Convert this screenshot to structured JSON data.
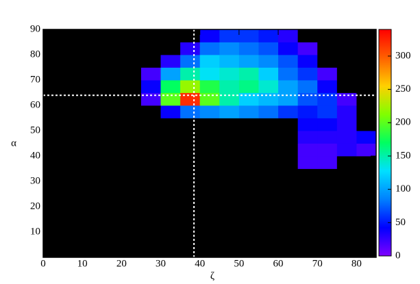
{
  "chart_data": {
    "type": "heatmap",
    "x_label": "ζ",
    "y_label": "α",
    "xlim": [
      0,
      85
    ],
    "ylim": [
      0,
      90
    ],
    "xticks": [
      0,
      10,
      20,
      30,
      40,
      50,
      60,
      70,
      80
    ],
    "yticks": [
      10,
      20,
      30,
      40,
      50,
      60,
      70,
      80,
      90
    ],
    "xbins": [
      0,
      5,
      10,
      15,
      20,
      25,
      30,
      35,
      40,
      45,
      50,
      55,
      60,
      65,
      70,
      75,
      80,
      85
    ],
    "ybins": [
      0,
      5,
      10,
      15,
      20,
      25,
      30,
      35,
      40,
      45,
      50,
      55,
      60,
      65,
      70,
      75,
      80,
      85,
      90
    ],
    "z": [
      [
        0,
        0,
        0,
        0,
        0,
        0,
        0,
        0,
        0,
        0,
        0,
        0,
        0,
        0,
        0,
        0,
        0
      ],
      [
        0,
        0,
        0,
        0,
        0,
        0,
        0,
        0,
        0,
        0,
        0,
        0,
        0,
        0,
        0,
        0,
        0
      ],
      [
        0,
        0,
        0,
        0,
        0,
        0,
        0,
        0,
        0,
        0,
        0,
        0,
        0,
        0,
        0,
        0,
        0
      ],
      [
        0,
        0,
        0,
        0,
        0,
        0,
        0,
        0,
        0,
        0,
        0,
        0,
        0,
        0,
        0,
        0,
        0
      ],
      [
        0,
        0,
        0,
        0,
        0,
        0,
        0,
        0,
        0,
        0,
        0,
        0,
        0,
        0,
        0,
        0,
        0
      ],
      [
        0,
        0,
        0,
        0,
        0,
        0,
        0,
        0,
        0,
        0,
        0,
        0,
        0,
        0,
        0,
        0,
        0
      ],
      [
        0,
        0,
        0,
        0,
        0,
        0,
        0,
        0,
        0,
        0,
        0,
        0,
        0,
        0,
        0,
        0,
        0
      ],
      [
        0,
        0,
        0,
        0,
        0,
        0,
        0,
        0,
        0,
        0,
        0,
        0,
        0,
        20,
        20,
        0,
        0
      ],
      [
        0,
        0,
        0,
        0,
        0,
        0,
        0,
        0,
        0,
        0,
        0,
        0,
        0,
        20,
        20,
        30,
        20
      ],
      [
        0,
        0,
        0,
        0,
        0,
        0,
        0,
        0,
        0,
        0,
        0,
        0,
        0,
        30,
        30,
        30,
        40
      ],
      [
        0,
        0,
        0,
        0,
        0,
        0,
        0,
        0,
        0,
        0,
        0,
        0,
        0,
        40,
        40,
        30,
        0
      ],
      [
        0,
        0,
        0,
        0,
        0,
        0,
        40,
        80,
        90,
        100,
        90,
        80,
        60,
        50,
        60,
        30,
        0
      ],
      [
        0,
        0,
        0,
        0,
        0,
        20,
        200,
        320,
        200,
        150,
        120,
        110,
        100,
        70,
        60,
        20,
        0
      ],
      [
        0,
        0,
        0,
        0,
        0,
        40,
        170,
        220,
        180,
        150,
        160,
        140,
        100,
        80,
        40,
        0,
        0
      ],
      [
        0,
        0,
        0,
        0,
        0,
        20,
        100,
        150,
        130,
        140,
        150,
        120,
        80,
        60,
        20,
        0,
        0
      ],
      [
        0,
        0,
        0,
        0,
        0,
        0,
        30,
        80,
        120,
        110,
        100,
        90,
        70,
        40,
        0,
        0,
        0
      ],
      [
        0,
        0,
        0,
        0,
        0,
        0,
        0,
        30,
        80,
        90,
        80,
        70,
        40,
        20,
        0,
        0,
        0
      ],
      [
        0,
        0,
        0,
        0,
        0,
        0,
        0,
        0,
        40,
        60,
        60,
        50,
        30,
        0,
        0,
        0,
        0
      ]
    ],
    "zlim": [
      0,
      340
    ],
    "zticks": [
      0,
      50,
      100,
      150,
      200,
      250,
      300
    ],
    "colormap": [
      "#7f00ff",
      "#0000ff",
      "#0080ff",
      "#00e0ff",
      "#00ff60",
      "#80ff00",
      "#ffd000",
      "#ff6000",
      "#ff0000"
    ],
    "empty_color": "#000000",
    "reference_lines": {
      "x": 38.5,
      "y": 64
    }
  }
}
